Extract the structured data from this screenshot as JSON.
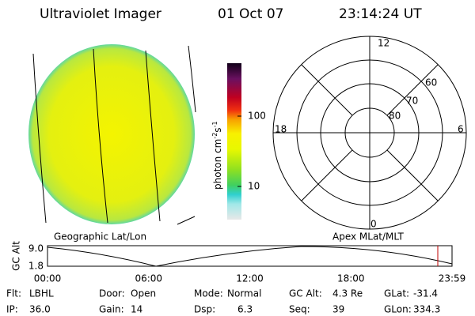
{
  "header": {
    "instrument": "Ultraviolet Imager",
    "date": "01 Oct 07",
    "time": "23:14:24 UT"
  },
  "colorbar": {
    "unit": "photon cm",
    "exp1": "-2",
    "unit2": "s",
    "exp2": "-1",
    "ticks": [
      "100",
      "10"
    ]
  },
  "polar": {
    "mlt": [
      "12",
      "18",
      "6",
      "0"
    ],
    "mlat": [
      "60",
      "70",
      "80"
    ]
  },
  "panel_labels": {
    "left": "Geographic Lat/Lon",
    "right": "Apex MLat/MLT"
  },
  "altitude_plot": {
    "ylabel": "GC Alt",
    "yticks": [
      "9.0",
      "1.8"
    ],
    "xticks": [
      "00:00",
      "06:00",
      "12:00",
      "18:00",
      "23:59"
    ]
  },
  "status": [
    [
      {
        "label": "Flt:",
        "value": "LBHL"
      },
      {
        "label": "Door:",
        "value": "Open"
      },
      {
        "label": "Mode:",
        "value": "Normal"
      },
      {
        "label": "GC Alt:",
        "value": "4.3 Re"
      },
      {
        "label": "GLat:",
        "value": "-31.4"
      }
    ],
    [
      {
        "label": "IP:",
        "value": "36.0"
      },
      {
        "label": "Gain:",
        "value": "14"
      },
      {
        "label": "Dsp:",
        "value": "6.3"
      },
      {
        "label": "Seq:",
        "value": "39"
      },
      {
        "label": "GLon:",
        "value": "334.3"
      }
    ]
  ]
}
